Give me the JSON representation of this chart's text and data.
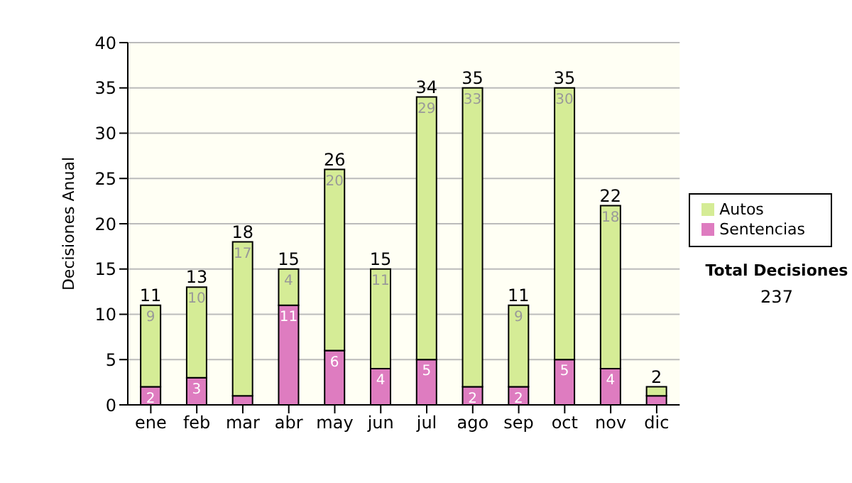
{
  "chart_data": {
    "type": "bar",
    "stacked": true,
    "ylabel": "Decisiones Anual",
    "categories": [
      "ene",
      "feb",
      "mar",
      "abr",
      "may",
      "jun",
      "jul",
      "ago",
      "sep",
      "oct",
      "nov",
      "dic"
    ],
    "series": [
      {
        "name": "Sentencias",
        "color": "#de7cc0",
        "values": [
          2,
          3,
          1,
          11,
          6,
          4,
          5,
          2,
          2,
          5,
          4,
          1
        ],
        "value_labels": [
          "2",
          "3",
          null,
          "11",
          "6",
          "4",
          "5",
          "2",
          "2",
          "5",
          "4",
          null
        ]
      },
      {
        "name": "Autos",
        "color": "#d5ec96",
        "values": [
          9,
          10,
          17,
          4,
          20,
          11,
          29,
          33,
          9,
          30,
          18,
          1
        ],
        "value_labels": [
          "9",
          "10",
          "17",
          "4",
          "20",
          "11",
          "29",
          "33",
          "9",
          "30",
          "18",
          null
        ]
      }
    ],
    "totals": [
      "11",
      "13",
      "18",
      "15",
      "26",
      "15",
      "34",
      "35",
      "11",
      "35",
      "22",
      "2"
    ],
    "ylim": [
      0,
      40
    ],
    "yticks": [
      0,
      5,
      10,
      15,
      20,
      25,
      30,
      35,
      40
    ],
    "grid": "y",
    "legend": "right",
    "annotations": [
      "Total Decisiones",
      "237"
    ]
  }
}
